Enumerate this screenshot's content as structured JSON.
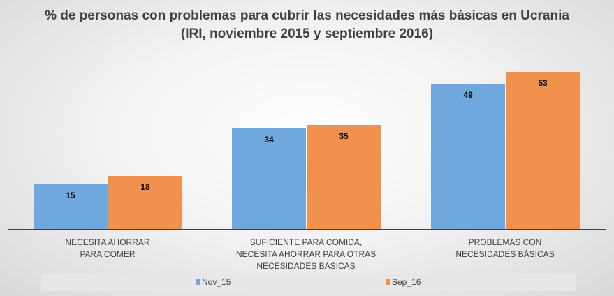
{
  "chart_data": {
    "type": "bar",
    "title": "% de personas con problemas para cubrir las necesidades más básicas en Ucrania",
    "subtitle": "(IRI, noviembre 2015 y septiembre 2016)",
    "categories": [
      [
        "NECESITA AHORRAR",
        "PARA COMER"
      ],
      [
        "SUFICIENTE PARA COMIDA,",
        "NECESITA AHORRAR PARA OTRAS",
        "NECESIDADES BÁSICAS"
      ],
      [
        "PROBLEMAS CON",
        "NECESIDADES BÁSICAS"
      ]
    ],
    "series": [
      {
        "name": "Nov_15",
        "values": [
          15,
          34,
          49
        ],
        "color": "#6fa8dc"
      },
      {
        "name": "Sep_16",
        "values": [
          18,
          35,
          53
        ],
        "color": "#f0914e"
      }
    ],
    "ylim": [
      0,
      60
    ],
    "grid": false,
    "legend": "bottom",
    "data_labels": true
  }
}
